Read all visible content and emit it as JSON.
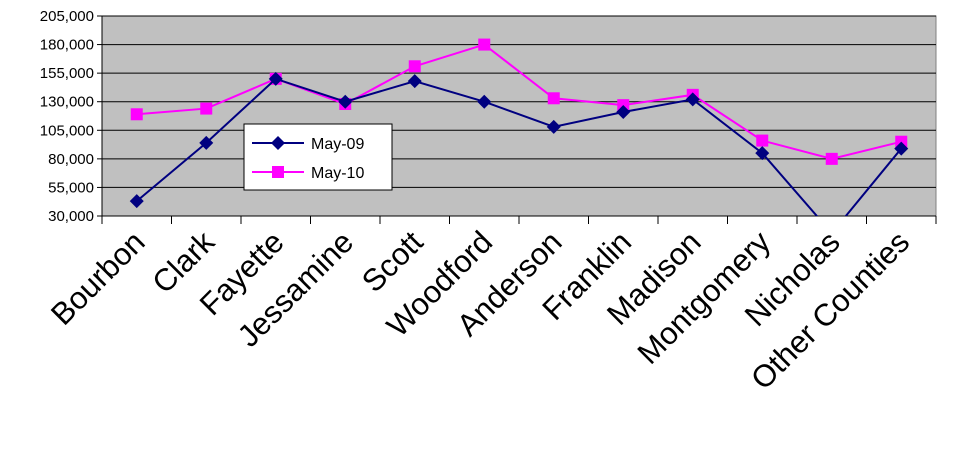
{
  "chart_data": {
    "type": "line",
    "title": "",
    "xlabel": "",
    "ylabel": "",
    "categories": [
      "Bourbon",
      "Clark",
      "Fayette",
      "Jessamine",
      "Scott",
      "Woodford",
      "Anderson",
      "Franklin",
      "Madison",
      "Montgomery",
      "Nicholas",
      "Other Counties"
    ],
    "series": [
      {
        "name": "May-09",
        "color": "#000080",
        "marker": "diamond",
        "values": [
          43000,
          94000,
          150000,
          130000,
          148000,
          130000,
          108000,
          121000,
          132000,
          85000,
          15000,
          89000
        ]
      },
      {
        "name": "May-10",
        "color": "#ff00ff",
        "marker": "square",
        "values": [
          119000,
          124000,
          150000,
          128000,
          161000,
          180000,
          133000,
          127000,
          136000,
          96000,
          80000,
          95000
        ]
      }
    ],
    "ylim": [
      30000,
      205000
    ],
    "yticks": [
      30000,
      55000,
      80000,
      105000,
      130000,
      155000,
      180000,
      205000
    ],
    "ytick_labels": [
      "30,000",
      "55,000",
      "80,000",
      "105,000",
      "130,000",
      "155,000",
      "180,000",
      "205,000"
    ],
    "grid": true,
    "plot_background": "#c0c0c0",
    "legend_position": "left-middle inside plot"
  }
}
